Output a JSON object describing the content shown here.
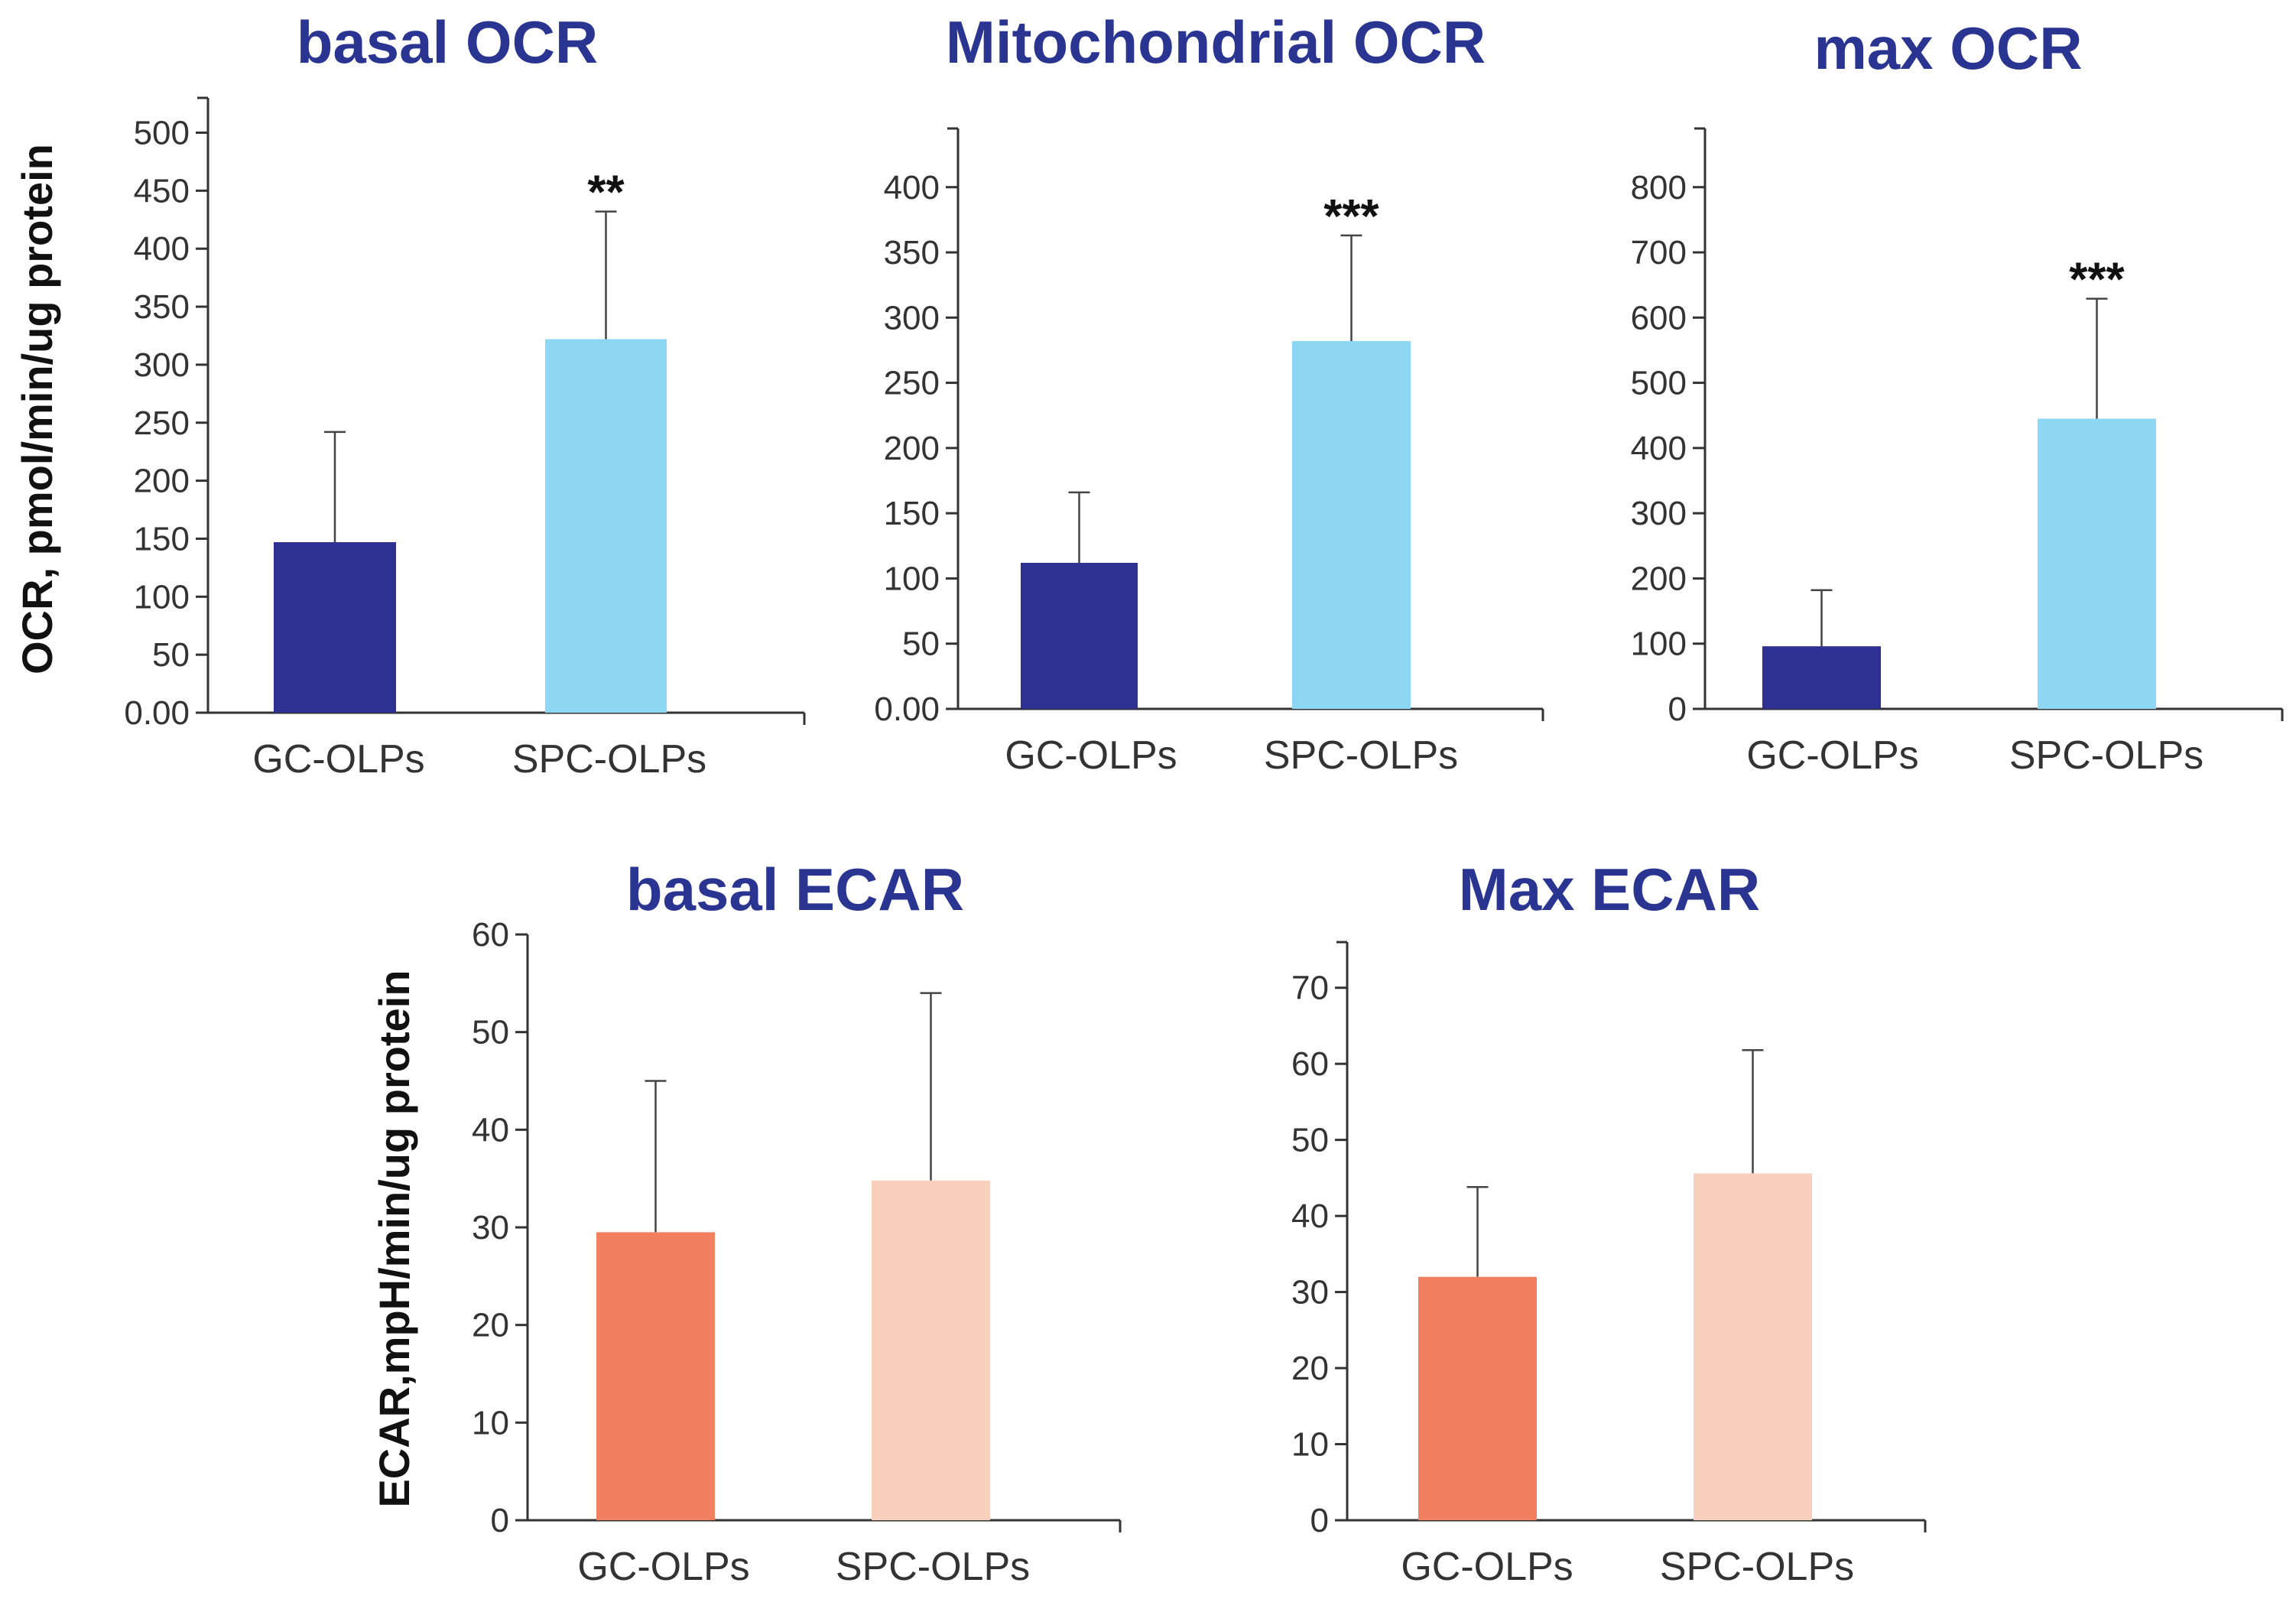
{
  "ylabels": {
    "ocr": "OCR, pmol/min/ug protein",
    "ecar": "ECAR,mpH/min/ug protein"
  },
  "chart_data": [
    {
      "type": "bar",
      "title": "basal OCR",
      "ylabel": "OCR, pmol/min/ug protein",
      "ylim": [
        0,
        530
      ],
      "yticks": [
        0,
        50,
        100,
        150,
        200,
        250,
        300,
        350,
        400,
        450,
        500
      ],
      "ytick_labels": [
        "0.00",
        "50",
        "100",
        "150",
        "200",
        "250",
        "300",
        "350",
        "400",
        "450",
        "500"
      ],
      "categories": [
        "GC-OLPs",
        "SPC-OLPs"
      ],
      "values": [
        147,
        322
      ],
      "errors": [
        95,
        110
      ],
      "significance": [
        "",
        "**"
      ],
      "colors": [
        "#2e3192",
        "#8dd7f4"
      ]
    },
    {
      "type": "bar",
      "title": "Mitochondrial OCR",
      "ylabel": "",
      "ylim": [
        0,
        445
      ],
      "yticks": [
        0,
        50,
        100,
        150,
        200,
        250,
        300,
        350,
        400
      ],
      "ytick_labels": [
        "0.00",
        "50",
        "100",
        "150",
        "200",
        "250",
        "300",
        "350",
        "400"
      ],
      "categories": [
        "GC-OLPs",
        "SPC-OLPs"
      ],
      "values": [
        112,
        282
      ],
      "errors": [
        54,
        81
      ],
      "significance": [
        "",
        "***"
      ],
      "colors": [
        "#2e3192",
        "#8dd7f4"
      ]
    },
    {
      "type": "bar",
      "title": "max  OCR",
      "ylabel": "",
      "ylim": [
        0,
        890
      ],
      "yticks": [
        0,
        100,
        200,
        300,
        400,
        500,
        600,
        700,
        800
      ],
      "ytick_labels": [
        "0",
        "100",
        "200",
        "300",
        "400",
        "500",
        "600",
        "700",
        "800"
      ],
      "categories": [
        "GC-OLPs",
        "SPC-OLPs"
      ],
      "values": [
        96,
        445
      ],
      "errors": [
        86,
        184
      ],
      "significance": [
        "",
        "***"
      ],
      "colors": [
        "#2e3192",
        "#8dd7f4"
      ]
    },
    {
      "type": "bar",
      "title": "basal ECAR",
      "ylabel": "ECAR,mpH/min/ug protein",
      "ylim": [
        0,
        60
      ],
      "yticks": [
        0,
        10,
        20,
        30,
        40,
        50,
        60
      ],
      "ytick_labels": [
        "0",
        "10",
        "20",
        "30",
        "40",
        "50",
        "60"
      ],
      "categories": [
        "GC-OLPs",
        "SPC-OLPs"
      ],
      "values": [
        29.5,
        34.8
      ],
      "errors": [
        15.5,
        19.2
      ],
      "significance": [
        "",
        ""
      ],
      "colors": [
        "#f08060",
        "#f9d0bd"
      ]
    },
    {
      "type": "bar",
      "title": "Max ECAR",
      "ylabel": "",
      "ylim": [
        0,
        76
      ],
      "yticks": [
        0,
        10,
        20,
        30,
        40,
        50,
        60,
        70
      ],
      "ytick_labels": [
        "0",
        "10",
        "20",
        "30",
        "40",
        "50",
        "60",
        "70"
      ],
      "categories": [
        "GC-OLPs",
        "SPC-OLPs"
      ],
      "values": [
        32,
        45.6
      ],
      "errors": [
        11.8,
        16.2
      ],
      "significance": [
        "",
        ""
      ],
      "colors": [
        "#f08060",
        "#f9d0bd"
      ]
    }
  ]
}
